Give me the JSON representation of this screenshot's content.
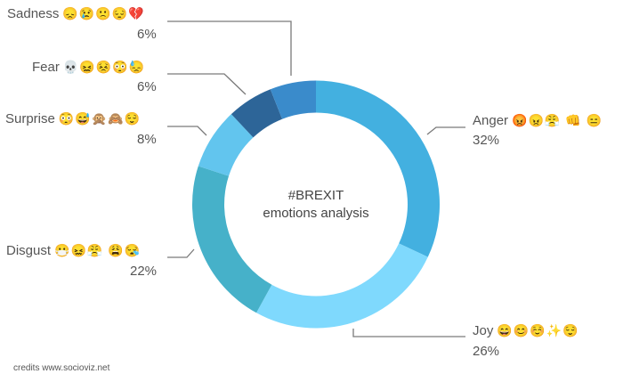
{
  "chart_data": {
    "type": "pie",
    "subtype": "donut",
    "title": "#BREXIT emotions analysis",
    "center_text": [
      "#BREXIT",
      "emotions analysis"
    ],
    "categories": [
      "Anger",
      "Joy",
      "Disgust",
      "Surprise",
      "Fear",
      "Sadness"
    ],
    "values": [
      32,
      26,
      22,
      8,
      6,
      6
    ],
    "unit": "%",
    "colors": [
      "#43b0e0",
      "#7fd9fd",
      "#46b1c9",
      "#62c5ee",
      "#2d6598",
      "#3a8bcb"
    ],
    "start_angle_deg": 0,
    "direction": "clockwise",
    "legend": "callout labels with leader lines",
    "slices": [
      {
        "name": "Anger",
        "value": 32,
        "label": "32%",
        "emojis": "😡😠😤 👊 😑",
        "color": "#43b0e0"
      },
      {
        "name": "Joy",
        "value": 26,
        "label": "26%",
        "emojis": "😄😊☺️✨😌",
        "color": "#7fd9fd"
      },
      {
        "name": "Disgust",
        "value": 22,
        "label": "22%",
        "emojis": "😷😖😤 😩😪",
        "color": "#46b1c9"
      },
      {
        "name": "Surprise",
        "value": 8,
        "label": "8%",
        "emojis": "😳😅🙊🙈😌",
        "color": "#62c5ee"
      },
      {
        "name": "Fear",
        "value": 6,
        "label": "6%",
        "emojis": "💀😖😣😳😓",
        "color": "#2d6598"
      },
      {
        "name": "Sadness",
        "value": 6,
        "label": "6%",
        "emojis": "😞😢🙁😔💔",
        "color": "#3a8bcb"
      }
    ]
  },
  "labels": {
    "sadness": {
      "name": "Sadness",
      "emojis": "😞😢🙁😔💔",
      "pct": "6%"
    },
    "fear": {
      "name": "Fear",
      "emojis": "💀😖😣😳😓",
      "pct": "6%"
    },
    "surprise": {
      "name": "Surprise",
      "emojis": "😳😅🙊🙈😌",
      "pct": "8%"
    },
    "disgust": {
      "name": "Disgust",
      "emojis": "😷😖😤 😩😪",
      "pct": "22%"
    },
    "anger": {
      "name": "Anger",
      "emojis": "😡😠😤 👊 😑",
      "pct": "32%"
    },
    "joy": {
      "name": "Joy",
      "emojis": "😄😊☺️✨😌",
      "pct": "26%"
    }
  },
  "center": {
    "line1": "#BREXIT",
    "line2": "emotions analysis"
  },
  "credits": "credits www.socioviz.net"
}
